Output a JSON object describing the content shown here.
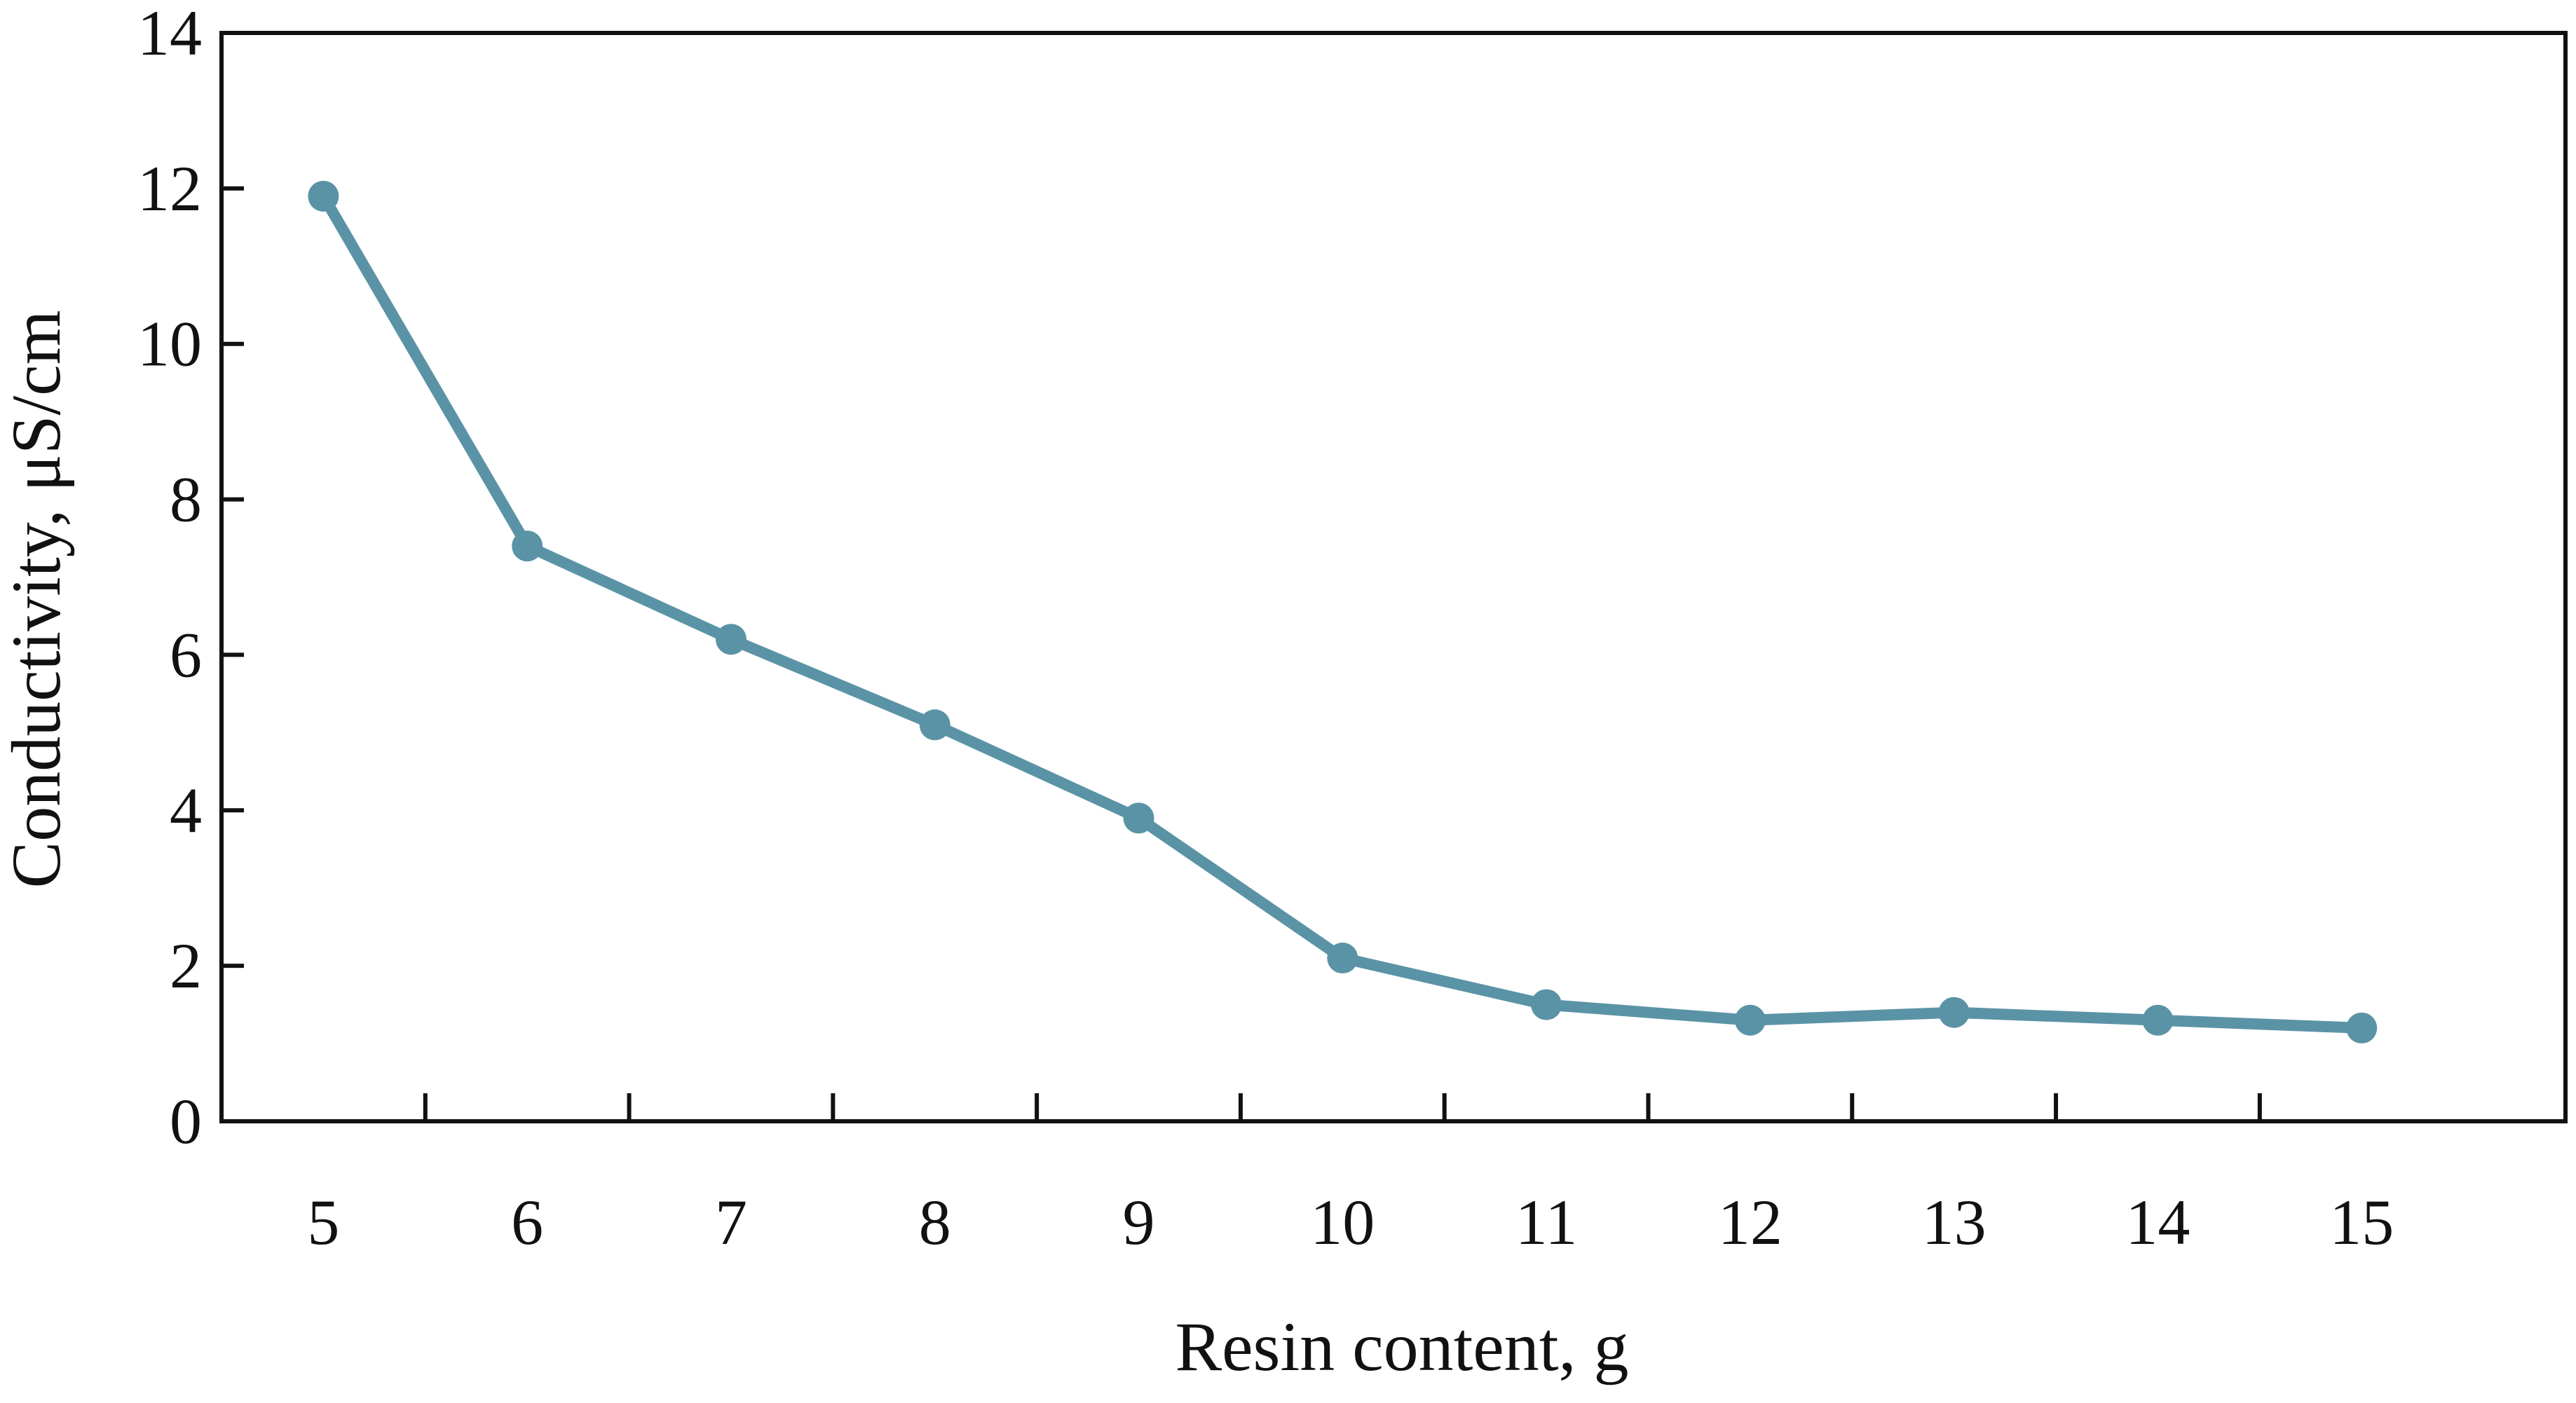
{
  "chart_data": {
    "type": "line",
    "title": "",
    "xlabel": "Resin content, g",
    "ylabel": "Conductivity, μS/cm",
    "categories": [
      "5",
      "6",
      "7",
      "8",
      "9",
      "10",
      "11",
      "12",
      "13",
      "14",
      "15"
    ],
    "x": [
      5,
      6,
      7,
      8,
      9,
      10,
      11,
      12,
      13,
      14,
      15
    ],
    "series": [
      {
        "values": [
          11.9,
          7.4,
          6.2,
          5.1,
          3.9,
          2.1,
          1.5,
          1.3,
          1.4,
          1.3,
          1.2
        ]
      }
    ],
    "ylim": [
      0,
      14
    ],
    "yticks": [
      "0",
      "2",
      "4",
      "6",
      "8",
      "10",
      "12",
      "14"
    ],
    "grid": false,
    "legend": "none",
    "colors": {
      "series": "#5b93a6",
      "axis": "#111111"
    }
  }
}
